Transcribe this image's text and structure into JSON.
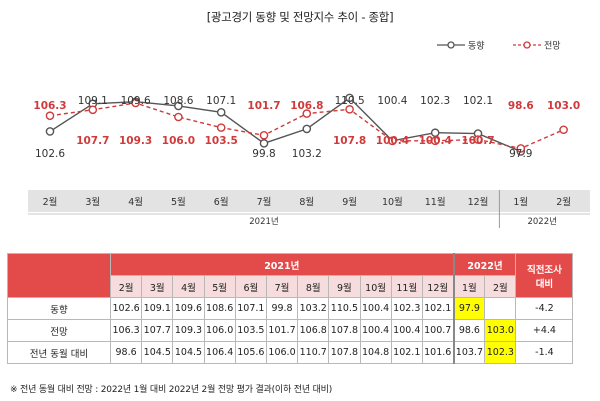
{
  "title": "[광고경기 동향 및 전망지수 추이 - 종합]",
  "chart_data": {
    "type": "line",
    "categories": [
      "2월",
      "3월",
      "4월",
      "5월",
      "6월",
      "7월",
      "8월",
      "9월",
      "10월",
      "11월",
      "12월",
      "1월",
      "2월"
    ],
    "year_groups": [
      {
        "label": "2021년",
        "count": 11
      },
      {
        "label": "2022년",
        "count": 2
      }
    ],
    "series": [
      {
        "name": "동향",
        "values": [
          102.6,
          109.1,
          109.6,
          108.6,
          107.1,
          99.8,
          103.2,
          110.5,
          100.4,
          102.3,
          102.1,
          97.9,
          null
        ],
        "color": "#555555",
        "style": "solid"
      },
      {
        "name": "전망",
        "values": [
          106.3,
          107.7,
          109.3,
          106.0,
          103.5,
          101.7,
          106.8,
          107.8,
          100.4,
          100.4,
          100.7,
          98.6,
          103.0
        ],
        "color": "#d03a3a",
        "style": "dashed"
      }
    ],
    "ylim": [
      94,
      114
    ],
    "legend_position": "top-right",
    "grid": false
  },
  "table": {
    "year_headers": [
      "2021년",
      "2022년"
    ],
    "months": [
      "2월",
      "3월",
      "4월",
      "5월",
      "6월",
      "7월",
      "8월",
      "9월",
      "10월",
      "11월",
      "12월",
      "1월",
      "2월"
    ],
    "last_col_header": [
      "직전조사",
      "대비"
    ],
    "rows": [
      {
        "label": "동향",
        "values": [
          "102.6",
          "109.1",
          "109.6",
          "108.6",
          "107.1",
          "99.8",
          "103.2",
          "110.5",
          "100.4",
          "102.3",
          "102.1",
          "97.9",
          ""
        ],
        "diff": "-4.2",
        "highlight": [
          11
        ]
      },
      {
        "label": "전망",
        "values": [
          "106.3",
          "107.7",
          "109.3",
          "106.0",
          "103.5",
          "101.7",
          "106.8",
          "107.8",
          "100.4",
          "100.4",
          "100.7",
          "98.6",
          "103.0"
        ],
        "diff": "+4.4",
        "highlight": [
          12
        ]
      },
      {
        "label": "전년 동월 대비",
        "values": [
          "98.6",
          "104.5",
          "104.5",
          "106.4",
          "105.6",
          "106.0",
          "110.7",
          "107.8",
          "104.8",
          "102.1",
          "101.6",
          "103.7",
          "102.3"
        ],
        "diff": "-1.4",
        "highlight": [
          12
        ]
      }
    ]
  },
  "note": "※ 전년 동월 대비 전망 : 2022년 1월 대비 2022년 2월 전망 평가 결과(이하 전년 대비)",
  "colors": {
    "accent_red": "#e34a4a",
    "line_gray": "#555555",
    "line_red": "#d03a3a",
    "highlight": "#ffff00",
    "axis_band": "#e3e3e3"
  }
}
